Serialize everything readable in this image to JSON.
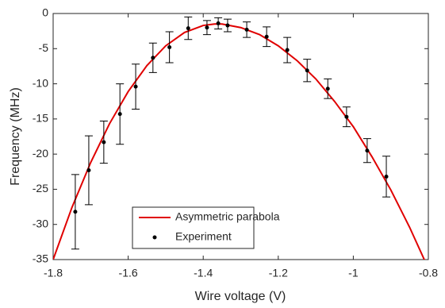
{
  "chart_data": {
    "type": "scatter",
    "xlabel": "Wire voltage (V)",
    "ylabel": "Frequency (MHz)",
    "xlim": [
      -1.8,
      -0.8
    ],
    "xticks": [
      -1.8,
      -1.6,
      -1.4,
      -1.2,
      -1,
      -0.8
    ],
    "ylim": [
      -35,
      0
    ],
    "yticks": [
      -35,
      -30,
      -25,
      -20,
      -15,
      -10,
      -5,
      0
    ],
    "grid": false,
    "legend": "lower center",
    "series": [
      {
        "name": "Asymmetric parabola",
        "type": "line",
        "color": "#e00000",
        "x": [
          -1.8,
          -1.75,
          -1.7,
          -1.65,
          -1.6,
          -1.55,
          -1.5,
          -1.45,
          -1.4,
          -1.37,
          -1.35,
          -1.3,
          -1.25,
          -1.2,
          -1.15,
          -1.1,
          -1.05,
          -1.0,
          -0.95,
          -0.9,
          -0.85,
          -0.81
        ],
        "values": [
          -35.0,
          -27.6,
          -21.2,
          -15.7,
          -11.1,
          -7.4,
          -4.6,
          -2.7,
          -1.7,
          -1.5,
          -1.5,
          -2.0,
          -3.0,
          -4.6,
          -6.7,
          -9.3,
          -12.5,
          -16.1,
          -20.4,
          -25.1,
          -30.4,
          -35.1
        ]
      },
      {
        "name": "Experiment",
        "type": "errorbar",
        "color": "#000000",
        "x": [
          -1.741,
          -1.705,
          -1.665,
          -1.622,
          -1.58,
          -1.534,
          -1.49,
          -1.44,
          -1.39,
          -1.36,
          -1.335,
          -1.284,
          -1.231,
          -1.176,
          -1.123,
          -1.068,
          -1.018,
          -0.963,
          -0.912
        ],
        "values": [
          -28.2,
          -22.3,
          -18.3,
          -14.3,
          -10.4,
          -6.3,
          -4.8,
          -2.1,
          -2.0,
          -1.4,
          -1.7,
          -2.3,
          -3.3,
          -5.2,
          -8.1,
          -10.7,
          -14.7,
          -19.5,
          -23.2
        ],
        "errors": [
          5.3,
          4.9,
          3.0,
          4.3,
          3.2,
          2.1,
          2.2,
          1.6,
          1.0,
          0.8,
          0.9,
          1.1,
          1.4,
          1.8,
          1.6,
          1.4,
          1.4,
          1.7,
          2.9
        ]
      }
    ]
  }
}
